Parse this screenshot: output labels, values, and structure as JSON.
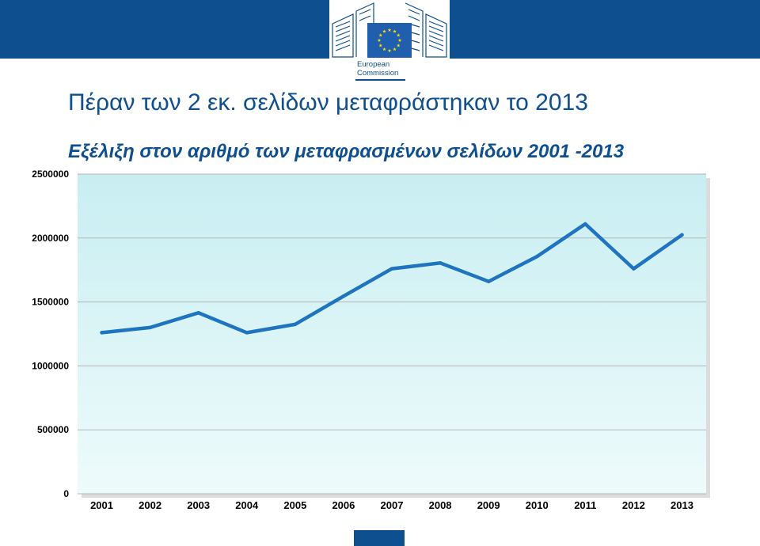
{
  "header": {
    "logo_lines": [
      "European",
      "Commission"
    ],
    "title": "Πέραν των 2 εκ. σελίδων μεταφράστηκαν το 2013",
    "subtitle": "Εξέλιξη στον αριθμό των μεταφρασμένων σελίδων 2001 -2013"
  },
  "colors": {
    "brand": "#0e4f8f",
    "line": "#1f74c0",
    "plot_top": "#c8eef2",
    "plot_bottom": "#eefbfb",
    "grid": "#b5b5b5",
    "eu_flag": "#1f5fae",
    "eu_stars": "#ffdd00"
  },
  "icons": [
    "eu-flag-icon",
    "berlaymont-building-icon"
  ],
  "chart_data": {
    "type": "line",
    "title": "Εξέλιξη στον αριθμό των μεταφρασμένων σελίδων 2001 -2013",
    "xlabel": "",
    "ylabel": "",
    "categories": [
      "2001",
      "2002",
      "2003",
      "2004",
      "2005",
      "2006",
      "2007",
      "2008",
      "2009",
      "2010",
      "2011",
      "2012",
      "2013"
    ],
    "series": [
      {
        "values": [
          1260000,
          1300000,
          1415000,
          1260000,
          1325000,
          1545000,
          1760000,
          1805000,
          1660000,
          1855000,
          2110000,
          1760000,
          2025000
        ]
      }
    ],
    "ylim": [
      0,
      2500000
    ],
    "yticks": [
      "0",
      "500000",
      "1000000",
      "1500000",
      "2000000",
      "2500000"
    ],
    "grid": true,
    "legend": "none"
  }
}
